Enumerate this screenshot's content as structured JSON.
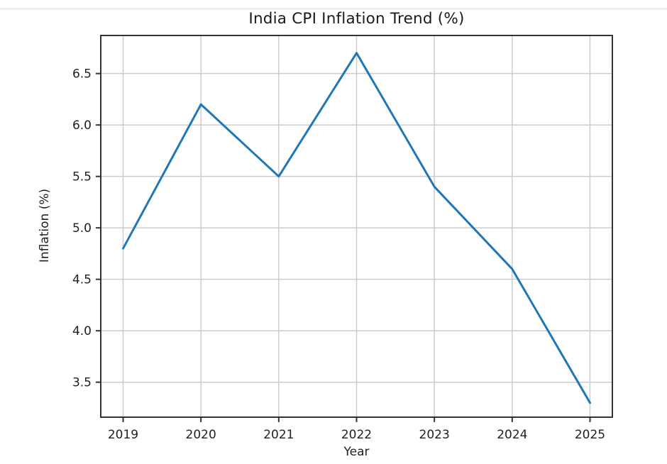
{
  "page": {
    "top_divider_color": "#f1f1f1",
    "background_color": "#ffffff"
  },
  "chart_data": {
    "type": "line",
    "title": "India CPI Inflation Trend (%)",
    "xlabel": "Year",
    "ylabel": "Inflation (%)",
    "x": [
      2019,
      2020,
      2021,
      2022,
      2023,
      2024,
      2025
    ],
    "xtick_labels": [
      "2019",
      "2020",
      "2021",
      "2022",
      "2023",
      "2024",
      "2025"
    ],
    "values": [
      4.8,
      6.2,
      5.5,
      6.7,
      5.4,
      4.6,
      3.3
    ],
    "yticks": [
      3.5,
      4.0,
      4.5,
      5.0,
      5.5,
      6.0,
      6.5
    ],
    "ytick_labels": [
      "3.5",
      "4.0",
      "4.5",
      "5.0",
      "5.5",
      "6.0",
      "6.5"
    ],
    "ylim": [
      3.16,
      6.87
    ],
    "grid": true,
    "legend": "none",
    "line_color": "#1f77b4",
    "grid_color": "#cccccc",
    "spine_color": "#333333",
    "tick_color": "#333333",
    "text_color": "#1f1f1f"
  }
}
